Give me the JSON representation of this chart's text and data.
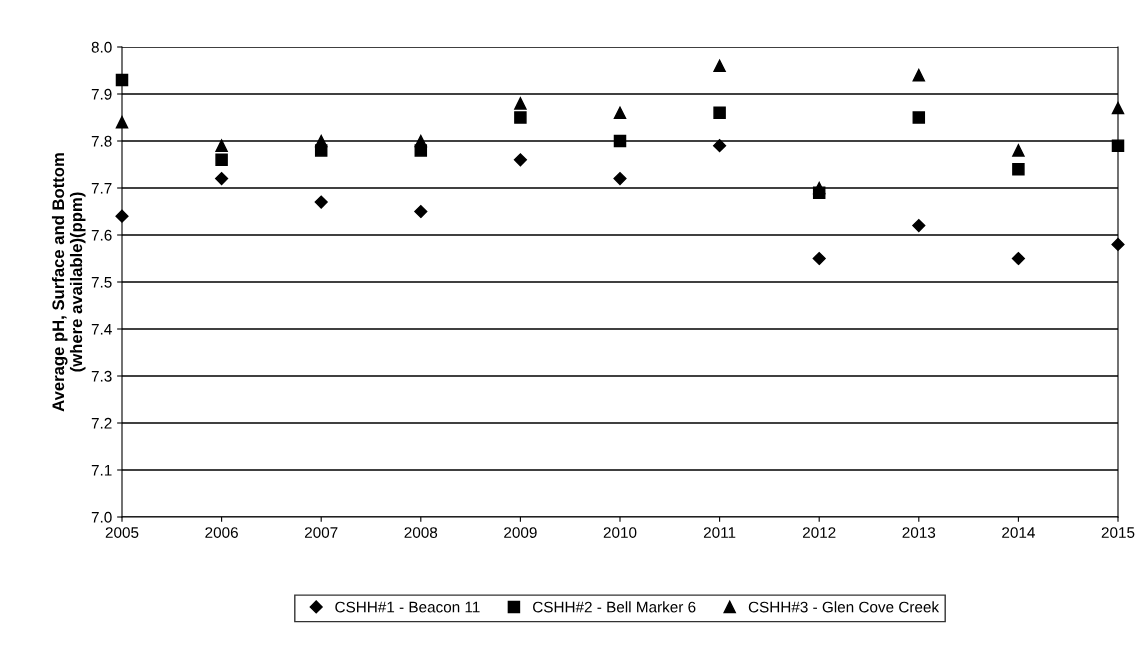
{
  "chart_data": {
    "type": "scatter",
    "ylabel": "Average pH, Surface and Bottom\n(where available)(ppm)",
    "x": [
      2005,
      2006,
      2007,
      2008,
      2009,
      2010,
      2011,
      2012,
      2013,
      2014,
      2015
    ],
    "series": [
      {
        "name": "CSHH#1 - Beacon 11",
        "color": "#000000",
        "marker": "diamond",
        "values": [
          7.64,
          7.72,
          7.67,
          7.65,
          7.76,
          7.72,
          7.79,
          7.55,
          7.62,
          7.55,
          7.58
        ]
      },
      {
        "name": "CSHH#2 - Bell Marker 6",
        "color": "#000000",
        "marker": "square",
        "values": [
          7.93,
          7.76,
          7.78,
          7.78,
          7.85,
          7.8,
          7.86,
          7.69,
          7.85,
          7.74,
          7.79
        ]
      },
      {
        "name": "CSHH#3 - Glen Cove Creek",
        "color": "#000000",
        "marker": "triangle",
        "values": [
          7.84,
          7.79,
          7.8,
          7.8,
          7.88,
          7.86,
          7.96,
          7.7,
          7.94,
          7.78,
          7.87
        ]
      }
    ],
    "xlim": [
      2005,
      2015
    ],
    "xticks": [
      2005,
      2006,
      2007,
      2008,
      2009,
      2010,
      2011,
      2012,
      2013,
      2014,
      2015
    ],
    "ylim": [
      7.0,
      8.0
    ],
    "yticks": [
      {
        "value": 7.0,
        "label": "7.0"
      },
      7.1,
      7.2,
      7.3,
      7.4,
      7.5,
      7.6,
      7.7,
      7.8,
      7.9,
      {
        "value": 8.0,
        "label": "8.0"
      }
    ],
    "grid": "y",
    "legend": "bottom"
  }
}
